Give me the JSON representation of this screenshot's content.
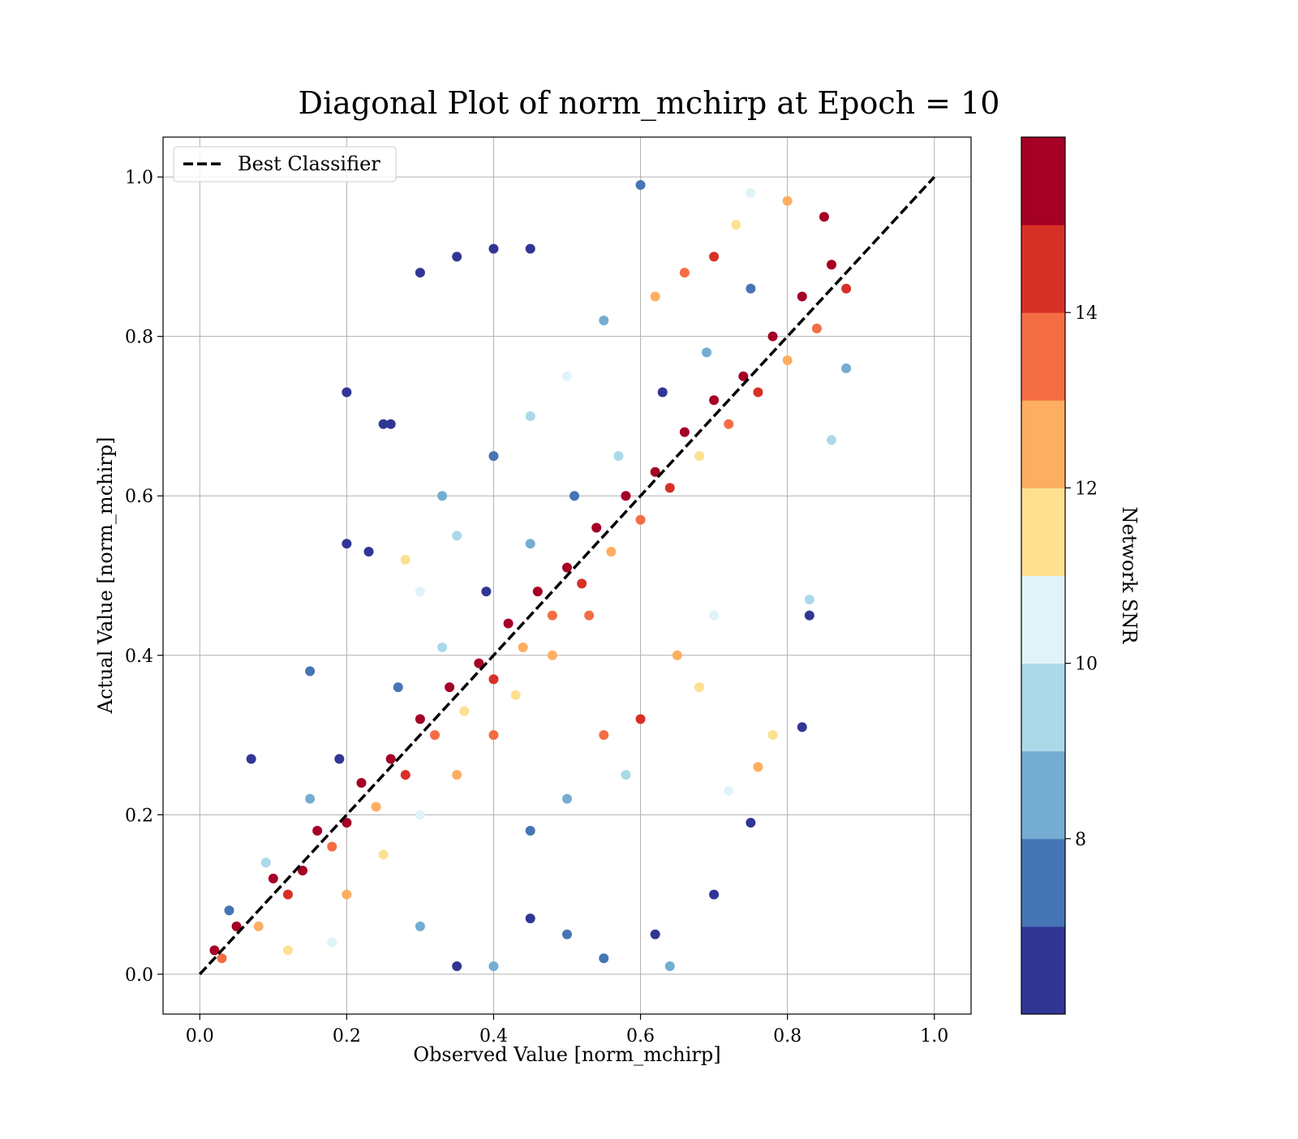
{
  "chart_data": {
    "type": "scatter",
    "title": "Diagonal Plot of norm_mchirp at Epoch = 10",
    "xlabel": "Observed Value [norm_mchirp]",
    "ylabel": "Actual Value [norm_mchirp]",
    "xlim": [
      -0.05,
      1.05
    ],
    "ylim": [
      -0.05,
      1.05
    ],
    "x_ticks": [
      0.0,
      0.2,
      0.4,
      0.6,
      0.8,
      1.0
    ],
    "y_ticks": [
      0.0,
      0.2,
      0.4,
      0.6,
      0.8,
      1.0
    ],
    "x_tick_labels": [
      "0.0",
      "0.2",
      "0.4",
      "0.6",
      "0.8",
      "1.0"
    ],
    "y_tick_labels": [
      "0.0",
      "0.2",
      "0.4",
      "0.6",
      "0.8",
      "1.0"
    ],
    "grid": true,
    "legend": {
      "placement": "top-left",
      "entries": [
        "Best Classifier"
      ]
    },
    "reference_line": {
      "name": "Best Classifier",
      "x": [
        0.0,
        1.0
      ],
      "y": [
        0.0,
        1.0
      ],
      "style": "dashed",
      "color": "#000000"
    },
    "colorbar": {
      "label": "Network SNR",
      "range": [
        6.0,
        16.0
      ],
      "ticks": [
        8,
        10,
        12,
        14
      ],
      "tick_labels": [
        "8",
        "10",
        "12",
        "14"
      ],
      "colors": [
        "#313695",
        "#4575b4",
        "#74add1",
        "#abd9e9",
        "#e0f3f8",
        "#fee090",
        "#fdae61",
        "#f46d43",
        "#d73027",
        "#a50026"
      ]
    },
    "series": [
      {
        "color_by": "Network SNR",
        "points": [
          [
            0.02,
            0.03,
            15.5
          ],
          [
            0.03,
            0.02,
            13.2
          ],
          [
            0.05,
            0.06,
            15.8
          ],
          [
            0.04,
            0.08,
            7.2
          ],
          [
            0.08,
            0.06,
            12.4
          ],
          [
            0.1,
            0.12,
            15.1
          ],
          [
            0.12,
            0.1,
            14.2
          ],
          [
            0.09,
            0.14,
            9.5
          ],
          [
            0.14,
            0.13,
            15.9
          ],
          [
            0.16,
            0.18,
            15.4
          ],
          [
            0.18,
            0.16,
            13.8
          ],
          [
            0.15,
            0.22,
            8.1
          ],
          [
            0.2,
            0.19,
            15.7
          ],
          [
            0.22,
            0.24,
            15.2
          ],
          [
            0.24,
            0.21,
            12.9
          ],
          [
            0.19,
            0.27,
            6.4
          ],
          [
            0.26,
            0.27,
            15.6
          ],
          [
            0.28,
            0.25,
            14.5
          ],
          [
            0.3,
            0.32,
            15.9
          ],
          [
            0.27,
            0.36,
            7.8
          ],
          [
            0.32,
            0.3,
            13.6
          ],
          [
            0.34,
            0.36,
            15.3
          ],
          [
            0.36,
            0.33,
            11.7
          ],
          [
            0.33,
            0.41,
            9.2
          ],
          [
            0.38,
            0.39,
            15.8
          ],
          [
            0.4,
            0.37,
            14.1
          ],
          [
            0.42,
            0.44,
            15.5
          ],
          [
            0.39,
            0.48,
            6.9
          ],
          [
            0.44,
            0.41,
            12.6
          ],
          [
            0.46,
            0.48,
            15.7
          ],
          [
            0.48,
            0.45,
            13.9
          ],
          [
            0.45,
            0.54,
            8.6
          ],
          [
            0.5,
            0.51,
            15.4
          ],
          [
            0.52,
            0.49,
            14.8
          ],
          [
            0.54,
            0.56,
            15.9
          ],
          [
            0.51,
            0.6,
            7.1
          ],
          [
            0.56,
            0.53,
            12.2
          ],
          [
            0.58,
            0.6,
            15.6
          ],
          [
            0.6,
            0.57,
            13.4
          ],
          [
            0.57,
            0.65,
            9.8
          ],
          [
            0.62,
            0.63,
            15.2
          ],
          [
            0.64,
            0.61,
            14.3
          ],
          [
            0.66,
            0.68,
            15.8
          ],
          [
            0.63,
            0.73,
            6.6
          ],
          [
            0.68,
            0.65,
            11.9
          ],
          [
            0.7,
            0.72,
            15.5
          ],
          [
            0.72,
            0.69,
            13.1
          ],
          [
            0.69,
            0.78,
            8.4
          ],
          [
            0.74,
            0.75,
            15.7
          ],
          [
            0.76,
            0.73,
            14.6
          ],
          [
            0.78,
            0.8,
            15.3
          ],
          [
            0.75,
            0.86,
            7.5
          ],
          [
            0.8,
            0.77,
            12.8
          ],
          [
            0.82,
            0.85,
            15.9
          ],
          [
            0.84,
            0.81,
            13.7
          ],
          [
            0.86,
            0.89,
            15.1
          ],
          [
            0.88,
            0.86,
            14.0
          ],
          [
            0.85,
            0.95,
            15.6
          ],
          [
            0.8,
            0.97,
            12.3
          ],
          [
            0.75,
            0.98,
            10.4
          ],
          [
            0.3,
            0.88,
            6.2
          ],
          [
            0.35,
            0.9,
            6.5
          ],
          [
            0.4,
            0.91,
            6.3
          ],
          [
            0.45,
            0.91,
            6.8
          ],
          [
            0.2,
            0.73,
            6.4
          ],
          [
            0.25,
            0.69,
            6.6
          ],
          [
            0.2,
            0.54,
            6.2
          ],
          [
            0.23,
            0.53,
            6.9
          ],
          [
            0.07,
            0.27,
            6.3
          ],
          [
            0.15,
            0.38,
            7.4
          ],
          [
            0.26,
            0.69,
            6.1
          ],
          [
            0.6,
            0.99,
            7.3
          ],
          [
            0.64,
            0.01,
            8.9
          ],
          [
            0.55,
            0.02,
            7.7
          ],
          [
            0.4,
            0.01,
            8.2
          ],
          [
            0.35,
            0.01,
            6.5
          ],
          [
            0.7,
            0.1,
            6.2
          ],
          [
            0.75,
            0.19,
            6.4
          ],
          [
            0.82,
            0.31,
            6.8
          ],
          [
            0.78,
            0.3,
            11.6
          ],
          [
            0.72,
            0.23,
            10.5
          ],
          [
            0.76,
            0.26,
            12.7
          ],
          [
            0.83,
            0.45,
            6.3
          ],
          [
            0.83,
            0.47,
            9.5
          ],
          [
            0.88,
            0.76,
            8.5
          ],
          [
            0.86,
            0.67,
            9.9
          ],
          [
            0.62,
            0.05,
            6.4
          ],
          [
            0.5,
            0.05,
            7.6
          ],
          [
            0.45,
            0.07,
            6.7
          ],
          [
            0.3,
            0.06,
            8.3
          ],
          [
            0.18,
            0.04,
            10.6
          ],
          [
            0.12,
            0.03,
            11.4
          ],
          [
            0.6,
            0.32,
            14.7
          ],
          [
            0.55,
            0.3,
            13.5
          ],
          [
            0.65,
            0.4,
            12.1
          ],
          [
            0.7,
            0.45,
            10.8
          ],
          [
            0.58,
            0.25,
            9.4
          ],
          [
            0.5,
            0.22,
            8.7
          ],
          [
            0.45,
            0.18,
            7.3
          ],
          [
            0.68,
            0.36,
            11.2
          ],
          [
            0.35,
            0.55,
            9.1
          ],
          [
            0.3,
            0.48,
            10.3
          ],
          [
            0.28,
            0.52,
            11.5
          ],
          [
            0.33,
            0.6,
            8.9
          ],
          [
            0.4,
            0.65,
            7.9
          ],
          [
            0.45,
            0.7,
            9.6
          ],
          [
            0.5,
            0.75,
            10.9
          ],
          [
            0.55,
            0.82,
            8.2
          ],
          [
            0.62,
            0.85,
            12.4
          ],
          [
            0.66,
            0.88,
            13.3
          ],
          [
            0.7,
            0.9,
            14.4
          ],
          [
            0.73,
            0.94,
            11.8
          ],
          [
            0.2,
            0.1,
            12.6
          ],
          [
            0.25,
            0.15,
            11.3
          ],
          [
            0.3,
            0.2,
            10.2
          ],
          [
            0.35,
            0.25,
            12.9
          ],
          [
            0.4,
            0.3,
            13.8
          ],
          [
            0.43,
            0.35,
            11.1
          ],
          [
            0.48,
            0.4,
            12.5
          ],
          [
            0.53,
            0.45,
            13.2
          ]
        ]
      }
    ]
  }
}
